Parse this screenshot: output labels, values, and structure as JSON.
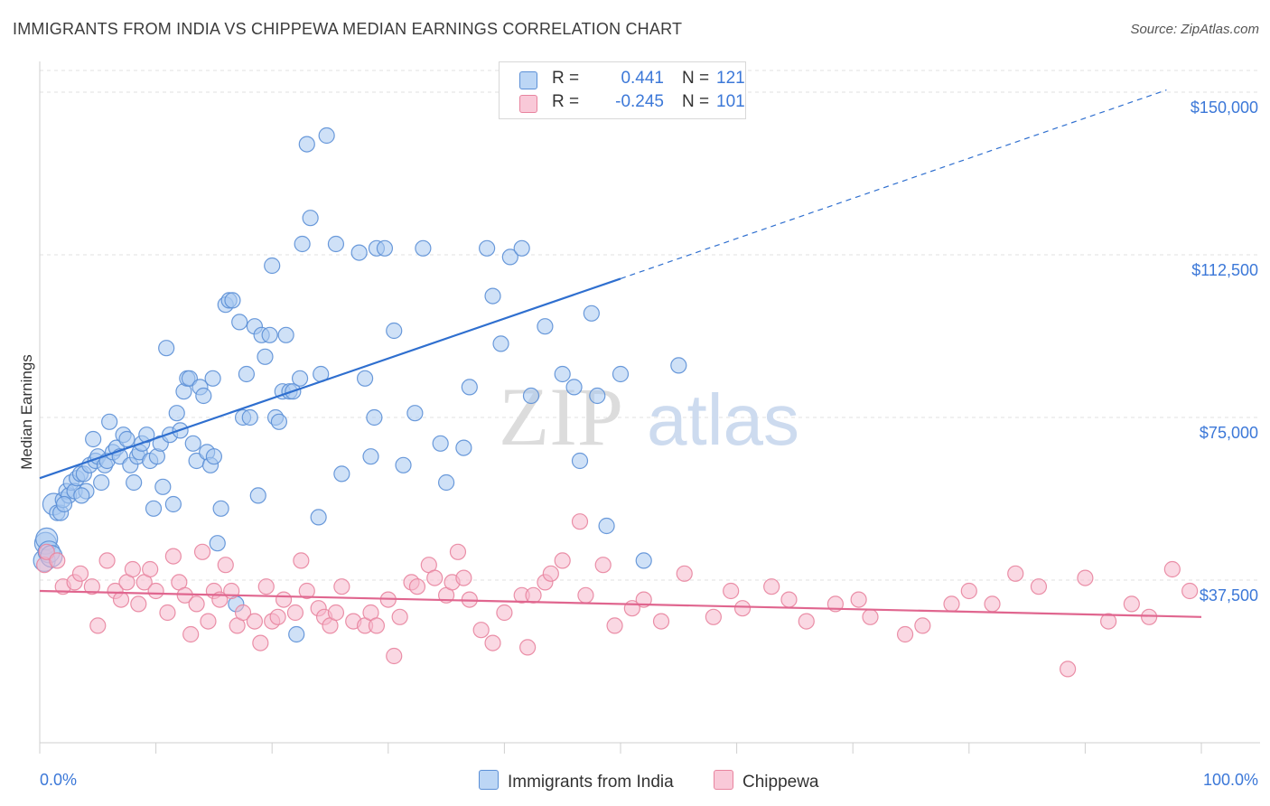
{
  "title": "IMMIGRANTS FROM INDIA VS CHIPPEWA MEDIAN EARNINGS CORRELATION CHART",
  "source": "Source: ZipAtlas.com",
  "watermark": {
    "zip": "ZIP",
    "atlas": "atlas"
  },
  "legend": {
    "r_label": "R =",
    "n_label": "N =",
    "rows": [
      {
        "r": "0.441",
        "n": "121"
      },
      {
        "r": "-0.245",
        "n": "101"
      }
    ]
  },
  "chart_data": {
    "type": "scatter",
    "title": "IMMIGRANTS FROM INDIA VS CHIPPEWA MEDIAN EARNINGS CORRELATION CHART",
    "xlabel": "",
    "ylabel": "Median Earnings",
    "xlim": [
      0,
      100
    ],
    "ylim": [
      0,
      155000
    ],
    "x_tick_labels": [
      "0.0%",
      "100.0%"
    ],
    "y_ticks": [
      37500,
      75000,
      112500,
      150000
    ],
    "y_tick_labels": [
      "$37,500",
      "$75,000",
      "$112,500",
      "$150,000"
    ],
    "grid": true,
    "legend_position": "top-center",
    "colors": {
      "india_fill": "#a8c8f0",
      "india_stroke": "#5b8fd6",
      "india_line": "#2f6fcf",
      "chippewa_fill": "#f6b8cc",
      "chippewa_stroke": "#e8849f",
      "chippewa_line": "#e0668f",
      "axis_label": "#3c78d8"
    },
    "series": [
      {
        "name": "Immigrants from India",
        "r": 0.441,
        "n": 121,
        "trend": {
          "x0": 0,
          "y0": 61000,
          "x1": 50,
          "y1": 107000,
          "x_dash_end": 97,
          "y_dash_end": 150500
        },
        "points": [
          [
            0.4,
            42000
          ],
          [
            0.5,
            46000
          ],
          [
            0.6,
            47000
          ],
          [
            0.8,
            44000
          ],
          [
            1.0,
            43000
          ],
          [
            1.2,
            55000
          ],
          [
            1.5,
            53000
          ],
          [
            1.8,
            53000
          ],
          [
            2.0,
            56000
          ],
          [
            2.3,
            58000
          ],
          [
            2.5,
            57000
          ],
          [
            2.7,
            60000
          ],
          [
            3.0,
            58000
          ],
          [
            3.2,
            61000
          ],
          [
            3.5,
            62000
          ],
          [
            3.8,
            62000
          ],
          [
            4.0,
            58000
          ],
          [
            4.3,
            64000
          ],
          [
            4.6,
            70000
          ],
          [
            4.8,
            65000
          ],
          [
            5.0,
            66000
          ],
          [
            5.3,
            60000
          ],
          [
            5.6,
            64000
          ],
          [
            5.8,
            65000
          ],
          [
            6.0,
            74000
          ],
          [
            6.3,
            67000
          ],
          [
            6.6,
            68000
          ],
          [
            6.9,
            66000
          ],
          [
            7.2,
            71000
          ],
          [
            7.5,
            70000
          ],
          [
            7.8,
            64000
          ],
          [
            8.1,
            60000
          ],
          [
            8.4,
            66000
          ],
          [
            8.6,
            67000
          ],
          [
            8.8,
            69000
          ],
          [
            9.2,
            71000
          ],
          [
            9.5,
            65000
          ],
          [
            9.8,
            54000
          ],
          [
            10.1,
            66000
          ],
          [
            10.4,
            69000
          ],
          [
            10.6,
            59000
          ],
          [
            10.9,
            91000
          ],
          [
            11.2,
            71000
          ],
          [
            11.5,
            55000
          ],
          [
            11.8,
            76000
          ],
          [
            12.1,
            72000
          ],
          [
            12.4,
            81000
          ],
          [
            12.7,
            84000
          ],
          [
            12.9,
            84000
          ],
          [
            13.2,
            69000
          ],
          [
            13.5,
            65000
          ],
          [
            13.8,
            82000
          ],
          [
            14.1,
            80000
          ],
          [
            14.4,
            67000
          ],
          [
            14.7,
            64000
          ],
          [
            15.0,
            66000
          ],
          [
            14.9,
            84000
          ],
          [
            15.3,
            46000
          ],
          [
            15.6,
            54000
          ],
          [
            16.0,
            101000
          ],
          [
            16.3,
            102000
          ],
          [
            16.6,
            102000
          ],
          [
            16.9,
            32000
          ],
          [
            17.2,
            97000
          ],
          [
            17.5,
            75000
          ],
          [
            17.8,
            85000
          ],
          [
            18.1,
            75000
          ],
          [
            18.5,
            96000
          ],
          [
            18.8,
            57000
          ],
          [
            19.1,
            94000
          ],
          [
            19.4,
            89000
          ],
          [
            19.8,
            94000
          ],
          [
            20.0,
            110000
          ],
          [
            20.3,
            75000
          ],
          [
            20.6,
            74000
          ],
          [
            20.9,
            81000
          ],
          [
            21.2,
            94000
          ],
          [
            21.5,
            81000
          ],
          [
            21.8,
            81000
          ],
          [
            22.1,
            25000
          ],
          [
            22.4,
            84000
          ],
          [
            22.6,
            115000
          ],
          [
            23.0,
            138000
          ],
          [
            23.3,
            121000
          ],
          [
            24.0,
            52000
          ],
          [
            24.2,
            85000
          ],
          [
            24.7,
            140000
          ],
          [
            25.5,
            115000
          ],
          [
            26.0,
            62000
          ],
          [
            27.5,
            113000
          ],
          [
            28.0,
            84000
          ],
          [
            28.8,
            75000
          ],
          [
            28.5,
            66000
          ],
          [
            29.0,
            114000
          ],
          [
            29.7,
            114000
          ],
          [
            30.5,
            95000
          ],
          [
            31.3,
            64000
          ],
          [
            32.3,
            76000
          ],
          [
            33.0,
            114000
          ],
          [
            34.5,
            69000
          ],
          [
            35.0,
            60000
          ],
          [
            36.5,
            68000
          ],
          [
            37.0,
            82000
          ],
          [
            38.5,
            114000
          ],
          [
            39.0,
            103000
          ],
          [
            39.7,
            92000
          ],
          [
            40.5,
            112000
          ],
          [
            41.5,
            114000
          ],
          [
            42.3,
            80000
          ],
          [
            43.5,
            96000
          ],
          [
            45.0,
            85000
          ],
          [
            46.0,
            82000
          ],
          [
            46.5,
            65000
          ],
          [
            47.5,
            99000
          ],
          [
            48.0,
            80000
          ],
          [
            48.8,
            50000
          ],
          [
            50.0,
            85000
          ],
          [
            52.0,
            42000
          ],
          [
            55.0,
            87000
          ],
          [
            3.6,
            57000
          ],
          [
            2.1,
            55000
          ]
        ]
      },
      {
        "name": "Chippewa",
        "r": -0.245,
        "n": 101,
        "trend": {
          "x0": 0,
          "y0": 35000,
          "x1": 100,
          "y1": 29000
        },
        "points": [
          [
            0.4,
            41000
          ],
          [
            0.6,
            44000
          ],
          [
            1.5,
            42000
          ],
          [
            2.0,
            36000
          ],
          [
            3.0,
            37000
          ],
          [
            3.5,
            39000
          ],
          [
            4.5,
            36000
          ],
          [
            5.0,
            27000
          ],
          [
            5.8,
            42000
          ],
          [
            6.5,
            35000
          ],
          [
            7.0,
            33000
          ],
          [
            7.5,
            37000
          ],
          [
            8.0,
            40000
          ],
          [
            8.5,
            32000
          ],
          [
            9.0,
            37000
          ],
          [
            9.5,
            40000
          ],
          [
            10.0,
            35000
          ],
          [
            11.0,
            30000
          ],
          [
            11.5,
            43000
          ],
          [
            12.0,
            37000
          ],
          [
            12.5,
            34000
          ],
          [
            13.0,
            25000
          ],
          [
            13.5,
            32000
          ],
          [
            14.0,
            44000
          ],
          [
            14.5,
            28000
          ],
          [
            15.0,
            35000
          ],
          [
            15.5,
            33000
          ],
          [
            16.0,
            41000
          ],
          [
            16.5,
            35000
          ],
          [
            17.0,
            27000
          ],
          [
            17.5,
            30000
          ],
          [
            18.5,
            28000
          ],
          [
            19.0,
            23000
          ],
          [
            19.5,
            36000
          ],
          [
            20.0,
            28000
          ],
          [
            20.5,
            29000
          ],
          [
            21.0,
            33000
          ],
          [
            22.0,
            30000
          ],
          [
            22.5,
            42000
          ],
          [
            23.0,
            35000
          ],
          [
            24.0,
            31000
          ],
          [
            24.5,
            29000
          ],
          [
            25.0,
            27000
          ],
          [
            25.5,
            30000
          ],
          [
            26.0,
            36000
          ],
          [
            27.0,
            28000
          ],
          [
            28.0,
            27000
          ],
          [
            28.5,
            30000
          ],
          [
            29.0,
            27000
          ],
          [
            30.0,
            33000
          ],
          [
            30.5,
            20000
          ],
          [
            31.0,
            29000
          ],
          [
            32.0,
            37000
          ],
          [
            32.5,
            36000
          ],
          [
            33.5,
            41000
          ],
          [
            34.0,
            38000
          ],
          [
            35.0,
            34000
          ],
          [
            35.5,
            37000
          ],
          [
            36.0,
            44000
          ],
          [
            36.5,
            38000
          ],
          [
            37.0,
            33000
          ],
          [
            38.0,
            26000
          ],
          [
            39.0,
            23000
          ],
          [
            40.0,
            30000
          ],
          [
            41.5,
            34000
          ],
          [
            42.0,
            22000
          ],
          [
            42.5,
            34000
          ],
          [
            43.5,
            37000
          ],
          [
            44.0,
            39000
          ],
          [
            45.0,
            42000
          ],
          [
            46.5,
            51000
          ],
          [
            47.0,
            34000
          ],
          [
            48.5,
            41000
          ],
          [
            49.5,
            27000
          ],
          [
            51.0,
            31000
          ],
          [
            52.0,
            33000
          ],
          [
            53.5,
            28000
          ],
          [
            55.5,
            39000
          ],
          [
            58.0,
            29000
          ],
          [
            59.5,
            35000
          ],
          [
            60.5,
            31000
          ],
          [
            63.0,
            36000
          ],
          [
            64.5,
            33000
          ],
          [
            66.0,
            28000
          ],
          [
            68.5,
            32000
          ],
          [
            70.5,
            33000
          ],
          [
            71.5,
            29000
          ],
          [
            74.5,
            25000
          ],
          [
            76.0,
            27000
          ],
          [
            78.5,
            32000
          ],
          [
            80.0,
            35000
          ],
          [
            82.0,
            32000
          ],
          [
            84.0,
            39000
          ],
          [
            86.0,
            36000
          ],
          [
            88.5,
            17000
          ],
          [
            90.0,
            38000
          ],
          [
            92.0,
            28000
          ],
          [
            94.0,
            32000
          ],
          [
            95.5,
            29000
          ],
          [
            97.5,
            40000
          ],
          [
            99.0,
            35000
          ]
        ]
      }
    ],
    "bottom_legend": [
      "Immigrants from India",
      "Chippewa"
    ]
  }
}
